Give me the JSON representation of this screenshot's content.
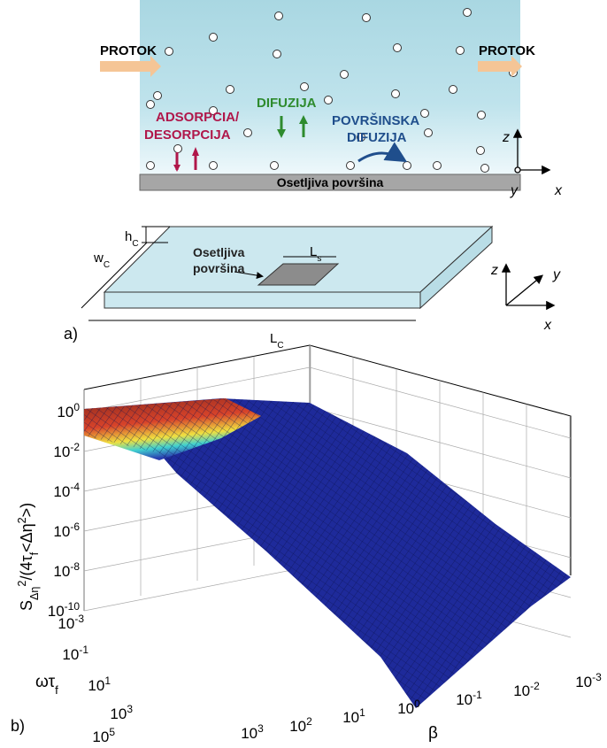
{
  "top": {
    "flow_left": "PROTOK",
    "flow_right": "PROTOK",
    "adsorption": [
      "ADSORPCIA/",
      "DESORPCIJA"
    ],
    "diffusion": "DIFUZIJA",
    "surface_diffusion": [
      "POVRŠINSKA",
      "DIFUZIJA"
    ],
    "surface": "Osetljiva površina",
    "axes": {
      "z": "z",
      "y": "y",
      "x": "x"
    }
  },
  "middle": {
    "h": {
      "t": "h",
      "sub": "C"
    },
    "w": {
      "t": "w",
      "sub": "C"
    },
    "L": {
      "t": "L",
      "sub": "C"
    },
    "Ls": {
      "t": "L",
      "sub": "s"
    },
    "sensor": [
      "Osetljiva",
      "površina"
    ],
    "panel": "a)",
    "axes": {
      "z": "z",
      "y": "y",
      "x": "x"
    }
  },
  "plot": {
    "panel": "b)",
    "ylabel": [
      {
        "t": "S",
        "pos": "normal"
      },
      {
        "t": "Δη",
        "pos": "sub"
      },
      {
        "t": "2",
        "pos": "sup"
      },
      {
        "t": "/(4τ",
        "pos": "normal"
      },
      {
        "t": "f",
        "pos": "sub"
      },
      {
        "t": "<Δη",
        "pos": "normal"
      },
      {
        "t": "2",
        "pos": "sup"
      },
      {
        "t": ">)",
        "pos": "normal"
      }
    ],
    "zticks": [
      {
        "base": "10",
        "exp": "0"
      },
      {
        "base": "10",
        "exp": "-2"
      },
      {
        "base": "10",
        "exp": "-4"
      },
      {
        "base": "10",
        "exp": "-6"
      },
      {
        "base": "10",
        "exp": "-8"
      },
      {
        "base": "10",
        "exp": "-10"
      }
    ],
    "wticks": [
      {
        "base": "10",
        "exp": "-3"
      },
      {
        "base": "10",
        "exp": "-1"
      },
      {
        "base": "10",
        "exp": "1"
      },
      {
        "base": "10",
        "exp": "3"
      },
      {
        "base": "10",
        "exp": "5"
      }
    ],
    "bticks": [
      {
        "base": "10",
        "exp": "3"
      },
      {
        "base": "10",
        "exp": "2"
      },
      {
        "base": "10",
        "exp": "1"
      },
      {
        "base": "10",
        "exp": "0"
      },
      {
        "base": "10",
        "exp": "-1"
      },
      {
        "base": "10",
        "exp": "-2"
      },
      {
        "base": "10",
        "exp": "-3"
      }
    ],
    "wlabel": [
      {
        "t": "ωτ",
        "pos": "normal"
      },
      {
        "t": "f",
        "pos": "sub"
      }
    ],
    "blabel": "β"
  }
}
